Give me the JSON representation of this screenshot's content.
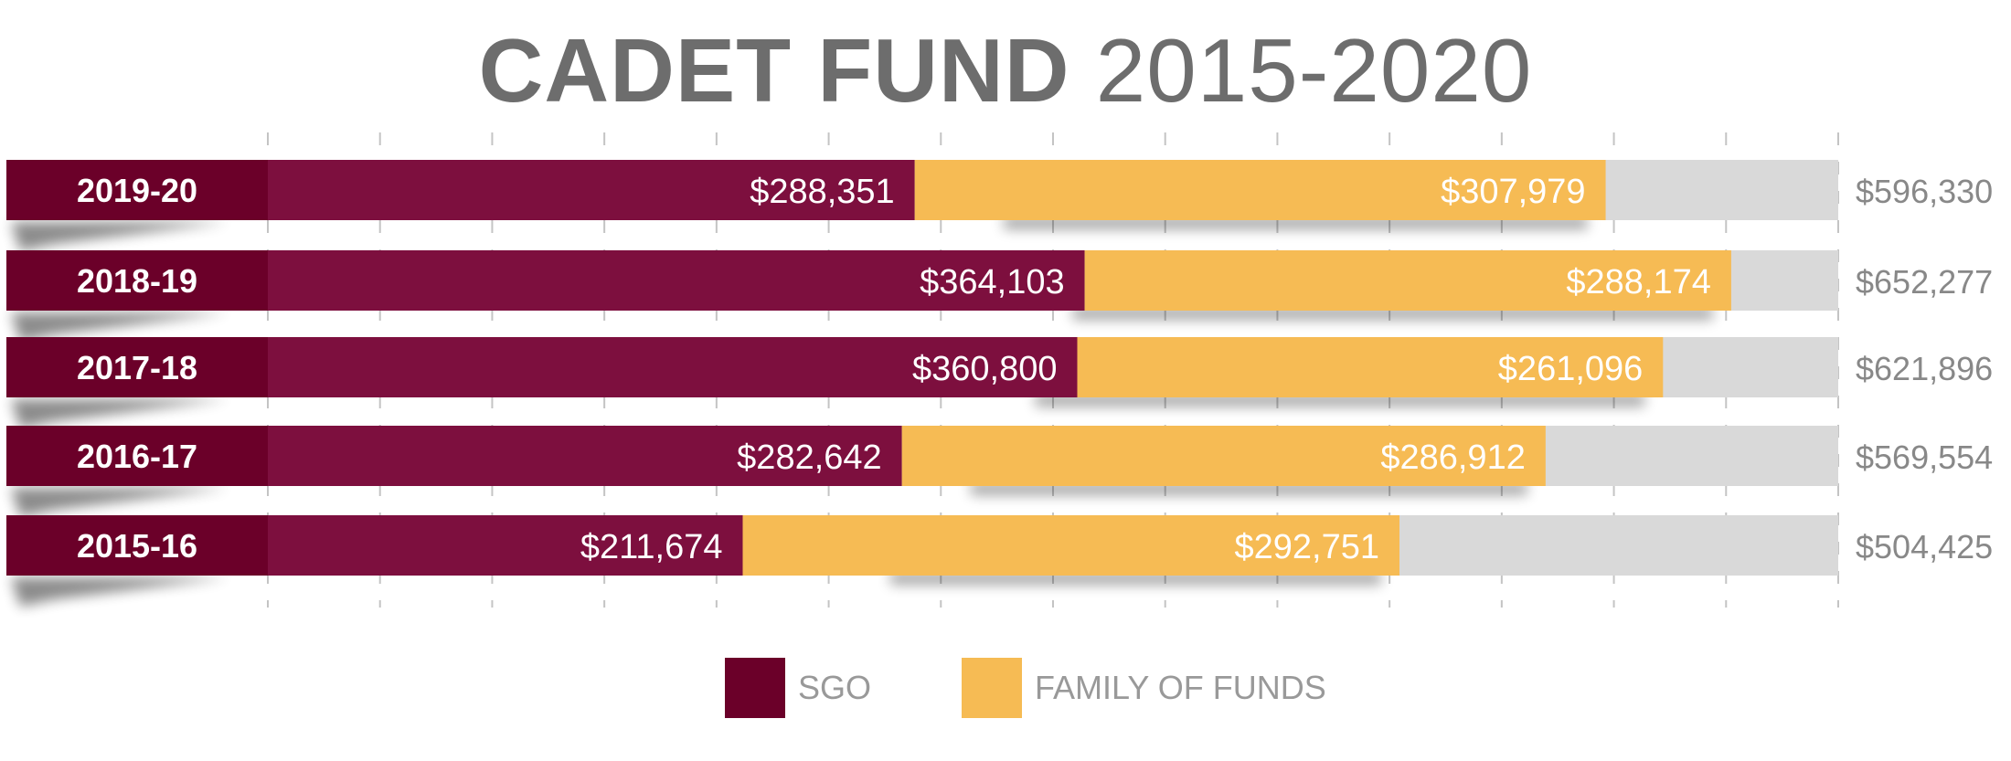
{
  "chart_data": {
    "type": "bar",
    "orientation": "horizontal",
    "stacked": true,
    "title_bold": "CADET FUND",
    "title_light": "2015-2020",
    "categories": [
      "2019-20",
      "2018-19",
      "2017-18",
      "2016-17",
      "2015-16"
    ],
    "series": [
      {
        "name": "SGO",
        "color": "#7d0f3e",
        "values": [
          288351,
          364103,
          360800,
          282642,
          211674
        ],
        "labels": [
          "$288,351",
          "$364,103",
          "$360,800",
          "$282,642",
          "$211,674"
        ]
      },
      {
        "name": "FAMILY OF FUNDS",
        "color": "#f6bb54",
        "values": [
          307979,
          288174,
          261096,
          286912,
          292751
        ],
        "labels": [
          "$307,979",
          "$288,174",
          "$261,096",
          "$286,912",
          "$292,751"
        ]
      }
    ],
    "totals": [
      596330,
      652277,
      621896,
      569554,
      504425
    ],
    "total_labels": [
      "$596,330",
      "$652,277",
      "$621,896",
      "$569,554",
      "$504,425"
    ],
    "xlim": [
      0,
      700000
    ],
    "grid": true,
    "grid_step": 50000,
    "legend": "bottom-center",
    "colors": {
      "category_box": "#6b0029",
      "track": "#d9d9d9",
      "title": "#6d6d6d"
    }
  }
}
